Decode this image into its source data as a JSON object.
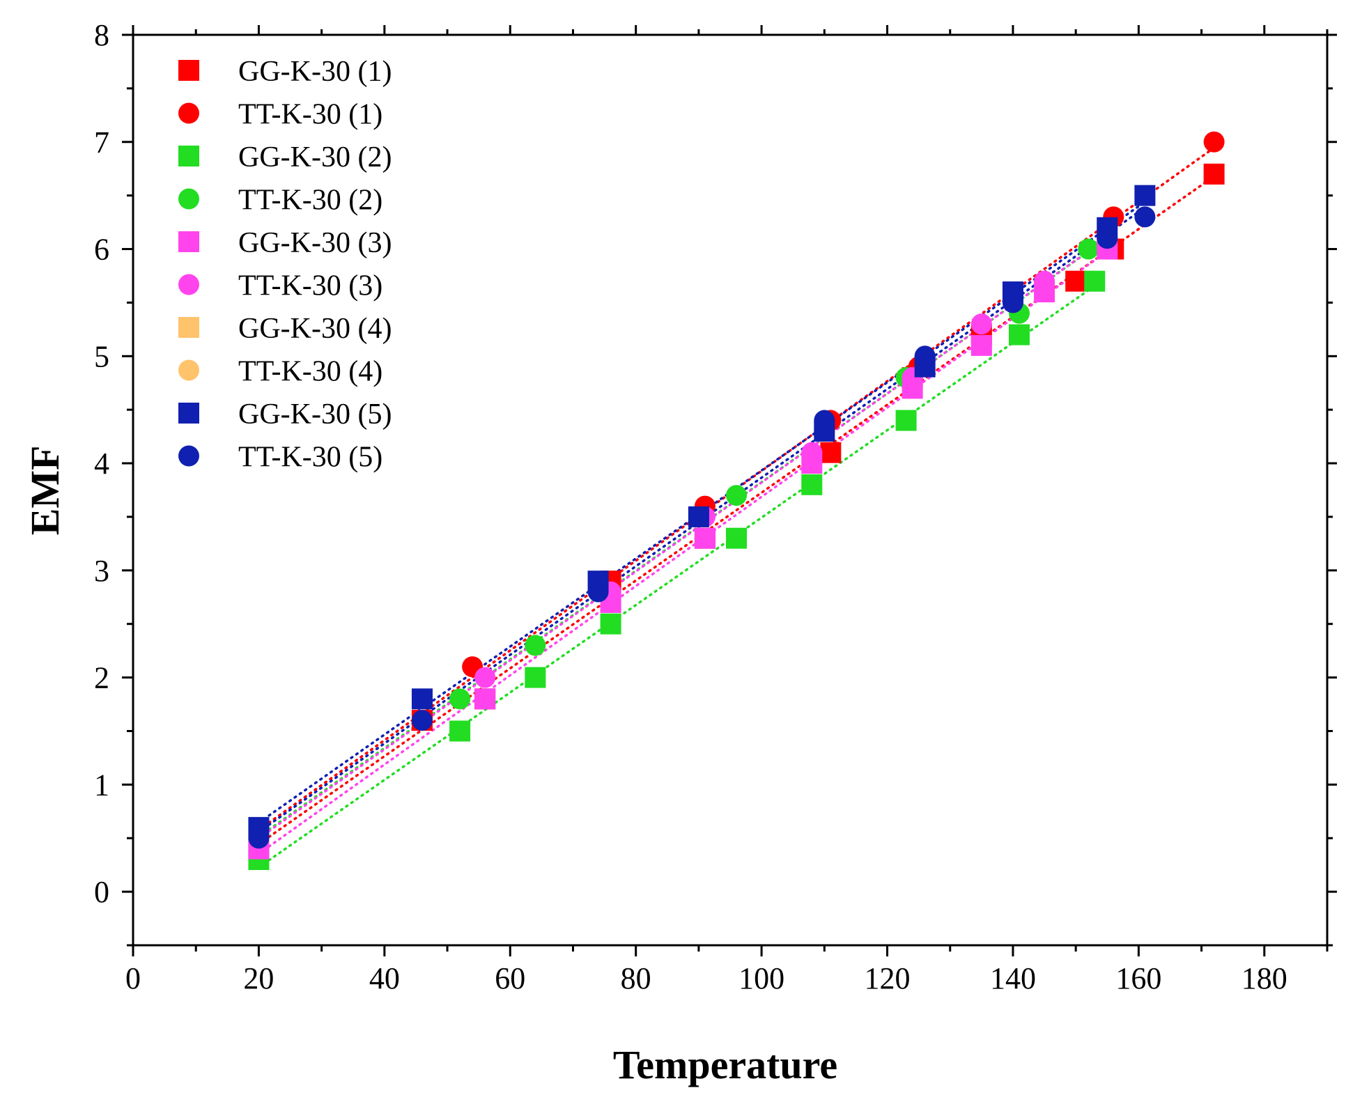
{
  "chart_data": {
    "type": "scatter",
    "title": "",
    "xlabel": "Temperature",
    "ylabel": "EMF",
    "xlim": [
      0,
      190
    ],
    "ylim": [
      -0.5,
      8
    ],
    "xticks": [
      0,
      20,
      40,
      60,
      80,
      100,
      120,
      140,
      160,
      180
    ],
    "yticks": [
      0,
      1,
      2,
      3,
      4,
      5,
      6,
      7,
      8
    ],
    "grid": false,
    "legend_position": "top-left",
    "trendlines": "dotted linear fit per series",
    "series": [
      {
        "name": "GG-K-30 (1)",
        "marker": "square",
        "color": "#ff0000",
        "x": [
          20,
          46,
          56,
          76,
          91,
          111,
          124,
          135,
          150,
          156,
          172
        ],
        "y": [
          0.4,
          1.6,
          1.8,
          2.9,
          3.3,
          4.1,
          4.8,
          5.2,
          5.7,
          6.0,
          6.7
        ]
      },
      {
        "name": "TT-K-30  (1)",
        "marker": "circle",
        "color": "#ff0000",
        "x": [
          20,
          54,
          75,
          91,
          111,
          125,
          140,
          156,
          172
        ],
        "y": [
          0.5,
          2.1,
          2.9,
          3.6,
          4.4,
          4.9,
          5.5,
          6.3,
          7.0
        ]
      },
      {
        "name": "GG-K-30 (2)",
        "marker": "square",
        "color": "#22dd22",
        "x": [
          20,
          52,
          64,
          76,
          96,
          108,
          123,
          141,
          153
        ],
        "y": [
          0.3,
          1.5,
          2.0,
          2.5,
          3.3,
          3.8,
          4.4,
          5.2,
          5.7
        ]
      },
      {
        "name": "TT-K-30  (2)",
        "marker": "circle",
        "color": "#22dd22",
        "x": [
          20,
          52,
          64,
          74,
          96,
          110,
          123,
          141,
          152
        ],
        "y": [
          0.5,
          1.8,
          2.3,
          2.8,
          3.7,
          4.3,
          4.8,
          5.4,
          6.0
        ]
      },
      {
        "name": "GG-K-30 (3)",
        "marker": "square",
        "color": "#ff44ee",
        "x": [
          20,
          56,
          76,
          91,
          108,
          124,
          135,
          145,
          155
        ],
        "y": [
          0.4,
          1.8,
          2.7,
          3.3,
          4.0,
          4.7,
          5.1,
          5.6,
          6.0
        ]
      },
      {
        "name": "TT-K-30  (3)",
        "marker": "circle",
        "color": "#ff44ee",
        "x": [
          20,
          56,
          76,
          91,
          108,
          124,
          135,
          145,
          155
        ],
        "y": [
          0.5,
          2.0,
          2.8,
          3.5,
          4.1,
          4.8,
          5.3,
          5.7,
          6.1
        ]
      },
      {
        "name": "GG-K-30 (4)",
        "marker": "square",
        "color": "#ffc36b",
        "x": [],
        "y": []
      },
      {
        "name": "TT-K-30  (4)",
        "marker": "circle",
        "color": "#ffc36b",
        "x": [],
        "y": []
      },
      {
        "name": "GG-K-30 (5)",
        "marker": "square",
        "color": "#1020b0",
        "x": [
          20,
          46,
          74,
          90,
          110,
          126,
          140,
          155,
          161
        ],
        "y": [
          0.6,
          1.8,
          2.9,
          3.5,
          4.3,
          4.9,
          5.6,
          6.2,
          6.5
        ]
      },
      {
        "name": "TT-K-30  (5)",
        "marker": "circle",
        "color": "#1020b0",
        "x": [
          20,
          46,
          74,
          90,
          110,
          126,
          140,
          155,
          161
        ],
        "y": [
          0.5,
          1.6,
          2.8,
          3.5,
          4.4,
          5.0,
          5.5,
          6.1,
          6.3
        ]
      }
    ]
  }
}
